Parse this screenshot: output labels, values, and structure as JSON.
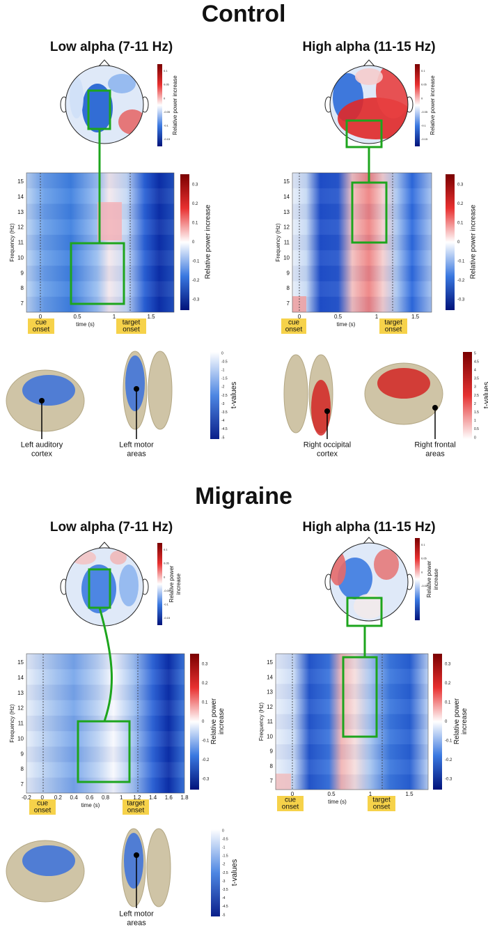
{
  "sections": [
    {
      "title": "Control",
      "panels": [
        {
          "title": "Low alpha (7-11 Hz)",
          "topo": {
            "colorbar_label": [
              "Relative power increase"
            ],
            "ticks": [
              "0.1",
              "0.05",
              "0",
              "-0.05",
              "-0.1",
              "-0.15"
            ]
          },
          "tfr": {
            "ylabel": "Frequency (Hz)",
            "xlabel": "time (s)",
            "yticks": [
              "7",
              "8",
              "9",
              "10",
              "11",
              "12",
              "13",
              "14",
              "15"
            ],
            "xticks": [
              "0",
              "0.5",
              "1",
              "1.5"
            ],
            "colorbar_label": [
              "Relative power increase"
            ],
            "colorbar_ticks": [
              "0.3",
              "0.2",
              "0.1",
              "0",
              "-0.1",
              "-0.2",
              "-0.3"
            ],
            "cue": [
              "cue",
              "onset"
            ],
            "target": [
              "target",
              "onset"
            ]
          },
          "brain": {
            "colorbar_label": "t-values",
            "colorbar_ticks": [
              "0",
              "-0.5",
              "-1",
              "-1.5",
              "-2",
              "-2.5",
              "-3",
              "-3.5",
              "-4",
              "-4.5",
              "-5"
            ],
            "labels": [
              [
                "Left auditory",
                "cortex"
              ],
              [
                "Left motor",
                "areas"
              ]
            ]
          }
        },
        {
          "title": "High alpha (11-15 Hz)",
          "topo": {
            "colorbar_label": [
              "Relative power increase"
            ],
            "ticks": [
              "0.1",
              "0.05",
              "0",
              "-0.05",
              "-0.1",
              "-0.15"
            ]
          },
          "tfr": {
            "ylabel": "Frequency (Hz)",
            "xlabel": "time (s)",
            "yticks": [
              "7",
              "8",
              "9",
              "10",
              "11",
              "12",
              "13",
              "14",
              "15"
            ],
            "xticks": [
              "0",
              "0.5",
              "1",
              "1.5"
            ],
            "colorbar_label": [
              "Relative power increase"
            ],
            "colorbar_ticks": [
              "0.3",
              "0.2",
              "0.1",
              "0",
              "-0.1",
              "-0.2",
              "-0.3"
            ],
            "cue": [
              "cue",
              "onset"
            ],
            "target": [
              "target",
              "onset"
            ]
          },
          "brain": {
            "colorbar_label": "t-values",
            "colorbar_ticks": [
              "5",
              "4.5",
              "4",
              "3.5",
              "3",
              "2.5",
              "2",
              "1.5",
              "1",
              "0.5",
              "0"
            ],
            "labels": [
              [
                "Right occipital",
                "cortex"
              ],
              [
                "Right frontal",
                "areas"
              ]
            ]
          }
        }
      ]
    },
    {
      "title": "Migraine",
      "panels": [
        {
          "title": "Low alpha (7-11 Hz)",
          "topo": {
            "colorbar_label": [
              "Relative power",
              "increase"
            ],
            "ticks": [
              "0.1",
              "0.05",
              "0",
              "-0.05",
              "-0.1",
              "-0.15"
            ]
          },
          "tfr": {
            "ylabel": "Frequency (Hz)",
            "xlabel": "time (s)",
            "yticks": [
              "7",
              "8",
              "9",
              "10",
              "11",
              "12",
              "13",
              "14",
              "15"
            ],
            "xticks": [
              "-0.2",
              "0",
              "0.2",
              "0.4",
              "0.6",
              "0.8",
              "1",
              "1.2",
              "1.4",
              "1.6",
              "1.8"
            ],
            "colorbar_label": [
              "Relative power",
              "increase"
            ],
            "colorbar_ticks": [
              "0.3",
              "0.2",
              "0.1",
              "0",
              "-0.1",
              "-0.2",
              "-0.3"
            ],
            "cue": [
              "cue",
              "onset"
            ],
            "target": [
              "target",
              "onset"
            ]
          },
          "brain": {
            "colorbar_label": "t-values",
            "colorbar_ticks": [
              "0",
              "-0.5",
              "-1",
              "-1.5",
              "-2",
              "-2.5",
              "-3",
              "-3.5",
              "-4",
              "-4.5",
              "-5"
            ],
            "labels": [
              [
                "Left motor",
                "areas"
              ]
            ]
          }
        },
        {
          "title": "High alpha (11-15 Hz)",
          "topo": {
            "colorbar_label": [
              "Relative power",
              "increase"
            ],
            "ticks": [
              "0.1",
              "0.05",
              "0",
              "-0.05"
            ]
          },
          "tfr": {
            "ylabel": "Frequency (Hz)",
            "xlabel": "time (s)",
            "yticks": [
              "7",
              "8",
              "9",
              "10",
              "11",
              "12",
              "13",
              "14",
              "15"
            ],
            "xticks": [
              "0",
              "0.5",
              "1",
              "1.5"
            ],
            "colorbar_label": [
              "Relative power",
              "increase"
            ],
            "colorbar_ticks": [
              "0.3",
              "0.2",
              "0.1",
              "0",
              "-0.1",
              "-0.2",
              "-0.3"
            ],
            "cue": [
              "cue",
              "onset"
            ],
            "target": [
              "target",
              "onset"
            ]
          }
        }
      ]
    }
  ]
}
